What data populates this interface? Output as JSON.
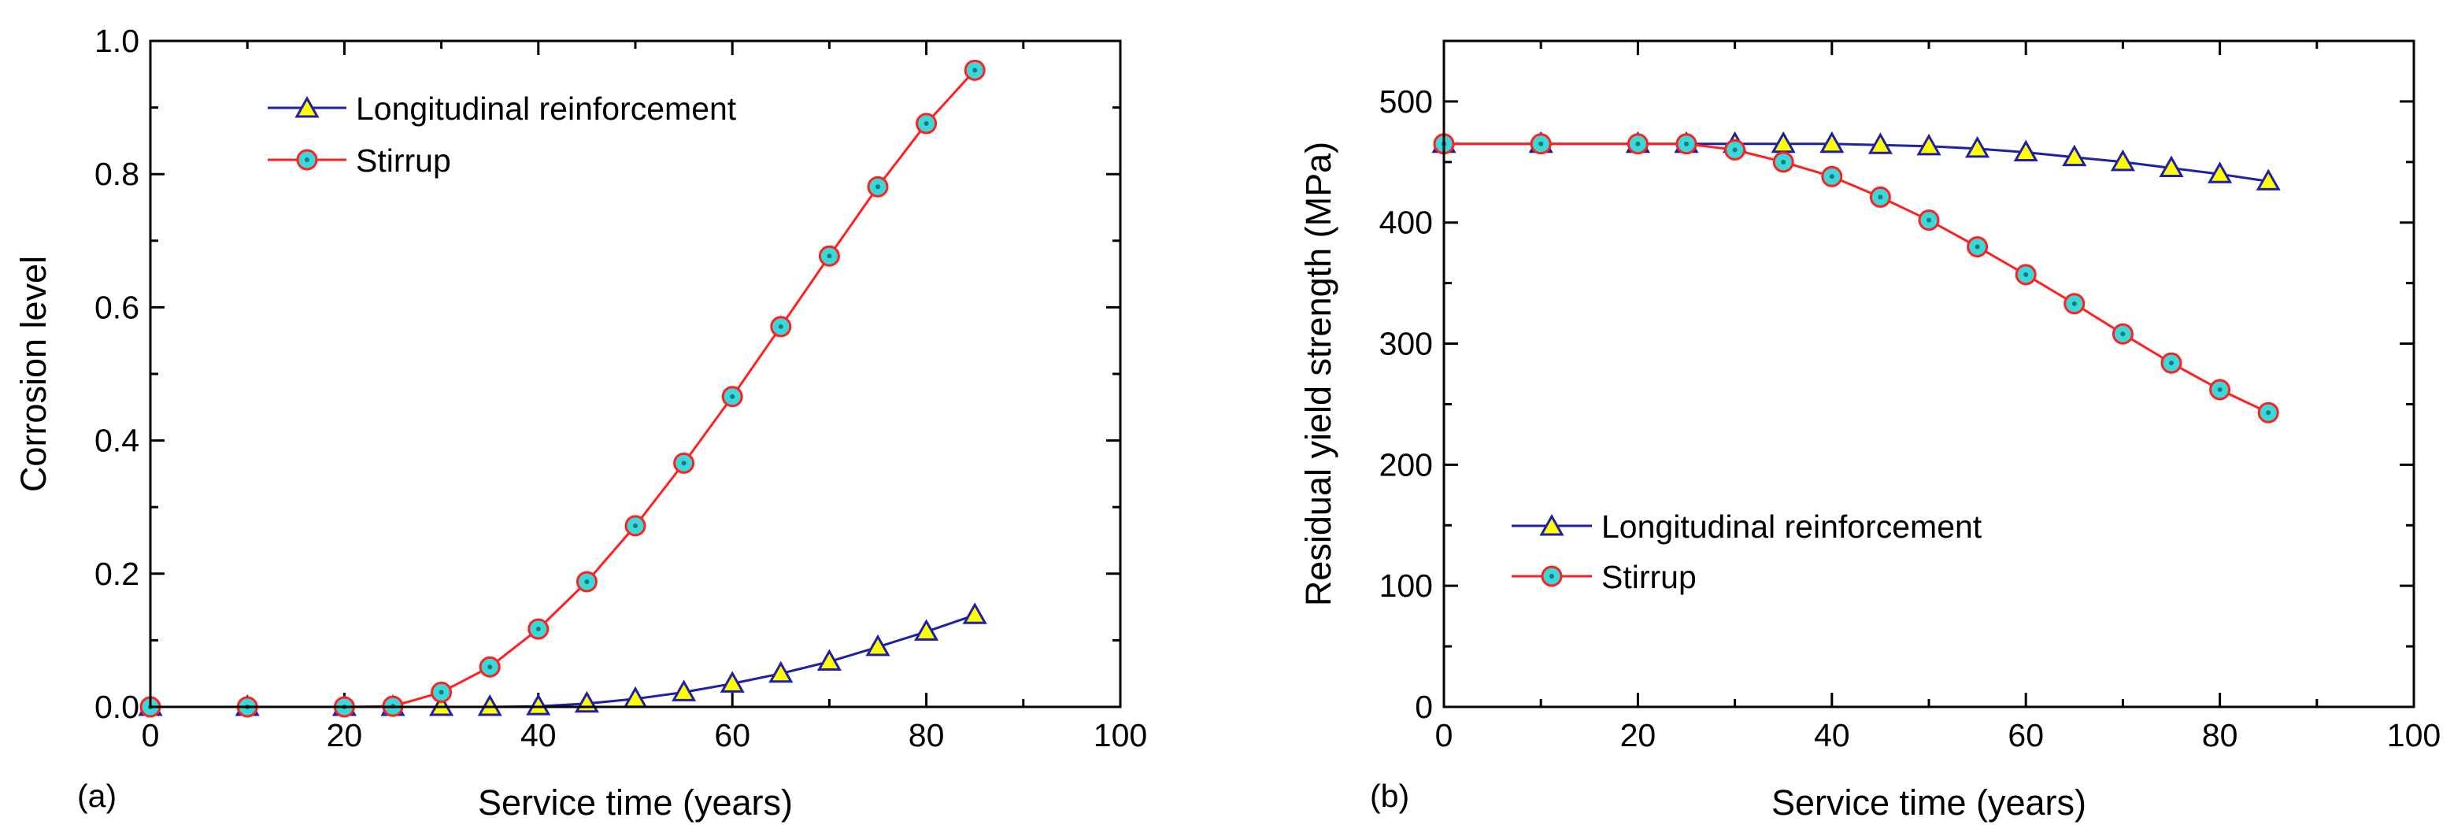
{
  "chart_data": [
    {
      "type": "line",
      "panel_label": "(a)",
      "xlabel": "Service time (years)",
      "ylabel": "Corrosion level",
      "xlim": [
        0,
        100
      ],
      "ylim": [
        0,
        1.0
      ],
      "xticks": [
        0,
        20,
        40,
        60,
        80,
        100
      ],
      "yticks": [
        0.0,
        0.2,
        0.4,
        0.6,
        0.8,
        1.0
      ],
      "xtick_labels": [
        "0",
        "20",
        "40",
        "60",
        "80",
        "100"
      ],
      "ytick_labels": [
        "0.0",
        "0.2",
        "0.4",
        "0.6",
        "0.8",
        "1.0"
      ],
      "grid": false,
      "legend_position": "top-left",
      "series": [
        {
          "name": "Longitudinal reinforcement",
          "line_color": "#1f1fa8",
          "marker": "triangle",
          "marker_fill": "#ffff00",
          "x": [
            0,
            10,
            20,
            25,
            30,
            35,
            40,
            45,
            50,
            55,
            60,
            65,
            70,
            75,
            80,
            85
          ],
          "values": [
            0,
            0,
            0,
            0,
            0,
            0,
            0.001,
            0.005,
            0.012,
            0.022,
            0.035,
            0.05,
            0.068,
            0.09,
            0.113,
            0.138
          ]
        },
        {
          "name": "Stirrup",
          "line_color": "#ff2020",
          "marker": "circle",
          "marker_fill": "#3ad8d8",
          "x": [
            0,
            10,
            20,
            25,
            30,
            35,
            40,
            45,
            50,
            55,
            60,
            65,
            70,
            75,
            80,
            85
          ],
          "values": [
            0,
            0,
            0,
            0.001,
            0.022,
            0.06,
            0.117,
            0.188,
            0.272,
            0.366,
            0.466,
            0.571,
            0.677,
            0.781,
            0.876,
            0.956
          ]
        }
      ]
    },
    {
      "type": "line",
      "panel_label": "(b)",
      "xlabel": "Service time (years)",
      "ylabel": "Residual yield strength (MPa)",
      "xlim": [
        0,
        100
      ],
      "ylim": [
        0,
        550
      ],
      "xticks": [
        0,
        20,
        40,
        60,
        80,
        100
      ],
      "yticks": [
        0,
        100,
        200,
        300,
        400,
        500
      ],
      "xtick_labels": [
        "0",
        "20",
        "40",
        "60",
        "80",
        "100"
      ],
      "ytick_labels": [
        "0",
        "100",
        "200",
        "300",
        "400",
        "500"
      ],
      "grid": false,
      "legend_position": "center-left",
      "series": [
        {
          "name": "Longitudinal reinforcement",
          "line_color": "#1f1fa8",
          "marker": "triangle",
          "marker_fill": "#ffff00",
          "x": [
            0,
            10,
            20,
            25,
            30,
            35,
            40,
            45,
            50,
            55,
            60,
            65,
            70,
            75,
            80,
            85
          ],
          "values": [
            465,
            465,
            465,
            465,
            465,
            465,
            465,
            464,
            463,
            461,
            458,
            454,
            450,
            445,
            440,
            434
          ]
        },
        {
          "name": "Stirrup",
          "line_color": "#ff2020",
          "marker": "circle",
          "marker_fill": "#3ad8d8",
          "x": [
            0,
            10,
            20,
            25,
            30,
            35,
            40,
            45,
            50,
            55,
            60,
            65,
            70,
            75,
            80,
            85
          ],
          "values": [
            465,
            465,
            465,
            465,
            460,
            450,
            438,
            421,
            402,
            380,
            357,
            333,
            308,
            284,
            262,
            243
          ]
        }
      ]
    }
  ]
}
